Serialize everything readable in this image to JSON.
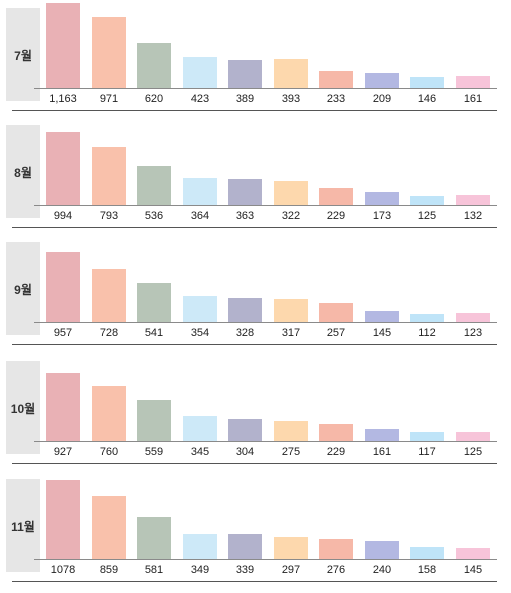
{
  "chart_data": [
    {
      "type": "bar",
      "title": "7월",
      "values": [
        1163,
        971,
        620,
        423,
        389,
        393,
        233,
        209,
        146,
        161
      ],
      "value_labels": [
        "1,163",
        "971",
        "620",
        "423",
        "389",
        "393",
        "233",
        "209",
        "146",
        "161"
      ]
    },
    {
      "type": "bar",
      "title": "8월",
      "values": [
        994,
        793,
        536,
        364,
        363,
        322,
        229,
        173,
        125,
        132
      ],
      "value_labels": [
        "994",
        "793",
        "536",
        "364",
        "363",
        "322",
        "229",
        "173",
        "125",
        "132"
      ]
    },
    {
      "type": "bar",
      "title": "9월",
      "values": [
        957,
        728,
        541,
        354,
        328,
        317,
        257,
        145,
        112,
        123
      ],
      "value_labels": [
        "957",
        "728",
        "541",
        "354",
        "328",
        "317",
        "257",
        "145",
        "112",
        "123"
      ]
    },
    {
      "type": "bar",
      "title": "10월",
      "values": [
        927,
        760,
        559,
        345,
        304,
        275,
        229,
        161,
        117,
        125
      ],
      "value_labels": [
        "927",
        "760",
        "559",
        "345",
        "304",
        "275",
        "229",
        "161",
        "117",
        "125"
      ]
    },
    {
      "type": "bar",
      "title": "11월",
      "values": [
        1078,
        859,
        581,
        349,
        339,
        297,
        276,
        240,
        158,
        145
      ],
      "value_labels": [
        "1078",
        "859",
        "581",
        "349",
        "339",
        "297",
        "276",
        "240",
        "158",
        "145"
      ]
    }
  ],
  "bar_colors": [
    "#e9b1b5",
    "#f9c1ab",
    "#b7c5b7",
    "#cde9f8",
    "#b2b2cc",
    "#fdd8ad",
    "#f6b8a8",
    "#b3b8e2",
    "#bfe4f8",
    "#f7c4d9"
  ]
}
